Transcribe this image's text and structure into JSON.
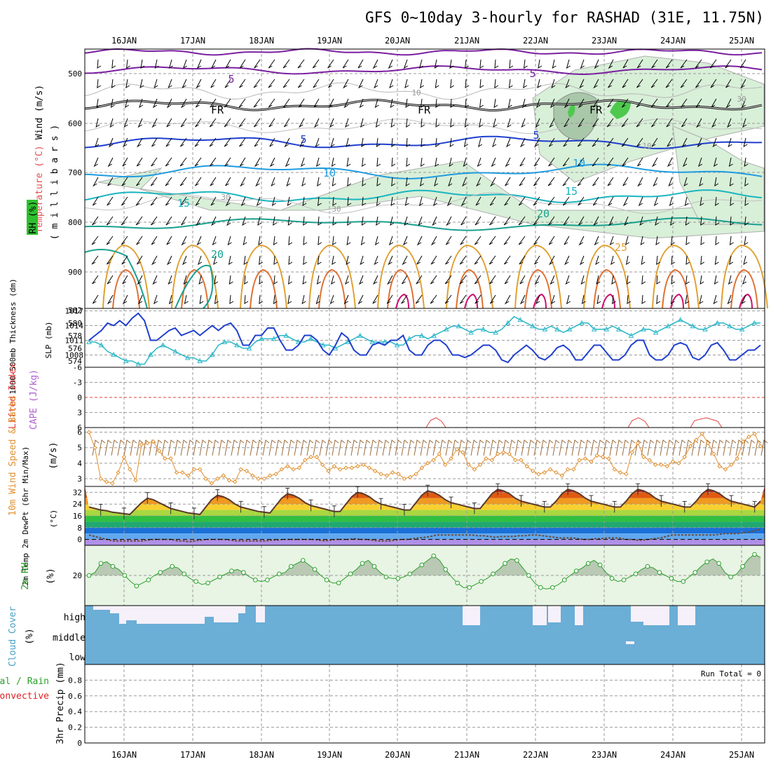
{
  "title": "GFS 0~10day 3-hourly for RASHAD (31E, 11.75N)",
  "dates": [
    "16JAN",
    "17JAN",
    "18JAN",
    "19JAN",
    "20JAN",
    "21JAN",
    "22JAN",
    "23JAN",
    "24JAN",
    "25JAN"
  ],
  "colors": {
    "temp": "#e8a030",
    "rh": "#2ca02c",
    "slp": "#1f3fcf",
    "thickness": "#2ab7c8",
    "lifted": "#e04040",
    "cape": "#b060d0",
    "wind": "#e09030",
    "cloud": "#6baed6",
    "precip_total": "#2ca02c",
    "precip_conv": "#e02020"
  },
  "upper": {
    "labels": {
      "wind": "Wind (m/s)",
      "temperature": "Temperature (°C)",
      "rh": "RH (%)",
      "units": "( m i l l i b a r s )"
    },
    "y_ticks": [
      "500",
      "600",
      "700",
      "800",
      "900"
    ],
    "contour_labels": [
      "5",
      "5",
      "FR",
      "FR",
      "FR",
      "5",
      "5",
      "10",
      "10",
      "15",
      "15",
      "20",
      "20",
      "25",
      "10",
      "10",
      "30",
      "30",
      "30"
    ]
  },
  "slp_panel": {
    "labels": {
      "thickness": "1000-500mb Thickness (dm)",
      "slp": "SLP (mb)"
    },
    "left_ticks": [
      "582",
      "580",
      "578",
      "576",
      "574"
    ],
    "right_ticks": [
      "1017",
      "1014",
      "1011",
      "1008"
    ]
  },
  "li_panel": {
    "labels": {
      "lifted": "Lifted Index",
      "cape": "CAPE (J/kg)"
    },
    "ticks": [
      "-6",
      "-3",
      "0",
      "3",
      "6"
    ]
  },
  "wind_panel": {
    "labels": {
      "title": "10m Wind Speed & Barbs",
      "units": "(m/s)"
    },
    "ticks": [
      "6",
      "5",
      "4",
      "3"
    ]
  },
  "temp_panel": {
    "labels": {
      "title": "2m Temp 2m DewPt (6hr Min/Max)",
      "units": "(°C)"
    },
    "ticks": [
      "32",
      "24",
      "16",
      "8",
      "0"
    ]
  },
  "rh_panel": {
    "labels": {
      "title": "2m RH",
      "units": "(%)"
    },
    "ticks": [
      "20"
    ]
  },
  "cloud_panel": {
    "labels": {
      "title": "Cloud Cover",
      "units": "(%)"
    },
    "levels": [
      "high",
      "middle",
      "low"
    ]
  },
  "precip_panel": {
    "labels": {
      "title": "3hr Precip (mm)",
      "total": "Total / Rain",
      "convective": "Convective"
    },
    "ticks": [
      "0.8",
      "0.6",
      "0.4",
      "0.2",
      "0"
    ],
    "run_total": "Run Total = 0"
  },
  "chart_data": [
    {
      "type": "line",
      "name": "slp",
      "xlabel": "",
      "ylabel": "SLP (mb)",
      "ylim": [
        1005,
        1017
      ],
      "x_start": "15JAN 12Z",
      "x_step_hours": 3,
      "series": [
        {
          "name": "SLP (mb)",
          "values": [
            1011,
            1012,
            1013,
            1014.5,
            1014,
            1015,
            1014,
            1015.5,
            1016.5,
            1015,
            1011,
            1011,
            1012,
            1013,
            1013.5,
            1012,
            1012.5,
            1013,
            1012,
            1013,
            1014,
            1013,
            1014,
            1014.5,
            1013,
            1010,
            1010,
            1012,
            1012,
            1013.5,
            1013.5,
            1011,
            1009,
            1009,
            1010,
            1012,
            1012,
            1011,
            1009,
            1008,
            1010,
            1012.5,
            1011.5,
            1009,
            1008,
            1008,
            1010,
            1010.5,
            1010,
            1011,
            1011,
            1012,
            1009,
            1008,
            1008,
            1010,
            1011,
            1011,
            1010,
            1008,
            1008,
            1007.5,
            1008,
            1009,
            1010,
            1010,
            1009,
            1007,
            1006.5,
            1008,
            1009,
            1010,
            1009,
            1007.5,
            1007,
            1008,
            1009.5,
            1010,
            1009,
            1007,
            1007,
            1008.5,
            1010,
            1010,
            1008.5,
            1007,
            1007,
            1008,
            1010,
            1011,
            1011,
            1008,
            1007,
            1007,
            1008,
            1010,
            1010.5,
            1010,
            1007.5,
            1007,
            1008,
            1010,
            1010.5,
            1009,
            1007,
            1007,
            1008,
            1009,
            1009,
            1010
          ]
        }
      ]
    },
    {
      "type": "line",
      "name": "thickness",
      "ylabel": "1000-500mb Thickness (dm)",
      "ylim": [
        573,
        582
      ],
      "series": [
        {
          "name": "Thickness (dm)",
          "values": [
            577,
            577,
            576.5,
            575.5,
            575,
            574.5,
            574,
            574,
            573.5,
            573.5,
            575,
            576,
            576.5,
            576,
            575.5,
            575,
            574.5,
            574.5,
            574,
            574,
            575,
            576.5,
            577,
            577,
            576.5,
            576,
            576,
            577,
            577.5,
            577.5,
            577.5,
            578,
            578,
            577.5,
            577,
            577,
            577.5,
            577,
            576.5,
            576.5,
            576,
            576.5,
            577,
            577.5,
            578,
            577.5,
            577,
            577,
            577,
            577,
            576.5,
            576.5,
            577.5,
            578,
            578,
            577.5,
            578,
            578.5,
            579,
            579.5,
            579.5,
            579,
            578.5,
            579,
            579,
            578.5,
            578.5,
            579,
            580,
            581,
            580.5,
            580,
            579.5,
            579,
            579,
            579.5,
            579,
            578.5,
            579,
            579.5,
            580,
            580,
            579,
            579,
            579,
            579.5,
            579,
            578.5,
            578,
            578.5,
            579,
            579,
            578.5,
            579,
            579.5,
            580,
            580.5,
            580,
            579.5,
            579,
            579,
            579.5,
            580,
            580,
            579.5,
            579,
            579,
            579.5,
            580,
            580
          ]
        }
      ]
    },
    {
      "type": "line",
      "name": "wind10m",
      "ylabel": "10m Wind Speed (m/s)",
      "ylim": [
        2.5,
        6.2
      ],
      "series": [
        {
          "name": "10m Wind Speed",
          "values": [
            6,
            5,
            3,
            2.8,
            2.7,
            3.4,
            4.4,
            3.6,
            2.9,
            5.2,
            5.3,
            5.4,
            4.8,
            4.3,
            4.3,
            3.4,
            3.4,
            3.2,
            3.6,
            3.6,
            3.0,
            2.7,
            3.0,
            3.2,
            2.9,
            2.8,
            3.6,
            3.5,
            3.2,
            3.0,
            3.0,
            3.2,
            3.3,
            3.6,
            3.8,
            3.6,
            3.7,
            4.2,
            4.4,
            4.4,
            3.9,
            3.5,
            3.8,
            3.6,
            3.7,
            3.7,
            3.8,
            3.9,
            3.7,
            3.5,
            3.3,
            3.2,
            3.4,
            3.3,
            3.0,
            3.1,
            3.3,
            3.7,
            4.0,
            4.2,
            4.6,
            3.9,
            4.3,
            4.9,
            4.7,
            3.9,
            3.6,
            3.9,
            4.3,
            4.2,
            4.6,
            4.7,
            4.6,
            4.2,
            4.2,
            3.8,
            3.5,
            3.3,
            3.4,
            3.6,
            3.4,
            3.2,
            3.6,
            3.6,
            4.2,
            4.3,
            4.1,
            4.5,
            4.4,
            4.3,
            3.6,
            3.4,
            3.3,
            4.7,
            5.3,
            4.4,
            4.2,
            3.9,
            3.9,
            3.8,
            4.1,
            4.0,
            4.4,
            5.1,
            5.5,
            5.9,
            5.3,
            4.6,
            3.8,
            3.6,
            3.9,
            4.3,
            5.4,
            5.7,
            5.9,
            5.1
          ]
        }
      ]
    },
    {
      "type": "area",
      "name": "temp2m",
      "ylabel": "2m Temp (°C)",
      "ylim": [
        -4,
        36
      ],
      "series": [
        {
          "name": "2m Temp",
          "values": [
            22,
            21,
            20,
            19.5,
            18.5,
            18,
            17.5,
            17,
            21,
            25,
            28,
            27,
            25,
            23,
            21,
            20,
            19,
            18,
            17.5,
            17,
            22,
            27,
            30,
            29,
            27,
            24,
            22,
            21,
            20,
            19,
            18.5,
            18,
            23,
            28,
            31,
            30,
            28,
            25,
            23,
            22,
            21,
            20,
            19,
            19,
            24,
            29,
            32,
            31,
            29,
            26,
            24,
            23,
            22,
            21,
            20,
            20,
            25,
            30,
            33,
            32,
            30,
            27,
            25,
            24,
            23,
            22,
            21,
            21,
            26,
            31,
            34,
            33,
            31,
            28,
            26,
            25,
            24,
            23,
            22,
            22,
            26,
            31,
            34,
            33,
            31,
            28,
            26,
            25,
            24,
            23,
            22,
            22,
            26,
            31,
            34,
            33,
            31,
            28,
            26,
            25,
            24,
            23,
            22,
            22,
            26,
            31,
            34,
            33,
            31,
            28,
            26,
            25,
            24,
            23,
            22,
            26
          ]
        },
        {
          "name": "2m DewPt",
          "values": [
            3,
            2,
            1,
            0,
            -1,
            -1,
            -1,
            -1,
            -1,
            -1,
            -0.5,
            0,
            0,
            0,
            0,
            -1,
            -1,
            -1.5,
            -1,
            -0.5,
            0,
            0,
            0,
            0,
            -0.5,
            -1,
            -1,
            -1,
            -1,
            -1,
            -1,
            -0.5,
            -0.5,
            0,
            0,
            0,
            0,
            0,
            0,
            -0.5,
            -1,
            -0.5,
            0,
            0,
            0,
            0.5,
            0,
            0,
            -0.5,
            -1,
            -1,
            -1,
            -0.5,
            0,
            0,
            0.5,
            1,
            1.5,
            2,
            3,
            3,
            3,
            3,
            3,
            3,
            3,
            2.5,
            2.5,
            2,
            1.5,
            2,
            2,
            2,
            2.5,
            2.5,
            3,
            3,
            2.5,
            2,
            1.5,
            1,
            1,
            1,
            0.5,
            0,
            0,
            0.5,
            0.5,
            1,
            1,
            1,
            0,
            0,
            -0.5,
            -0.5,
            0,
            0.5,
            1,
            2,
            3,
            3,
            3,
            3,
            3,
            3,
            3,
            3,
            3.5,
            4,
            4,
            4,
            4.5,
            5,
            6,
            7
          ]
        }
      ]
    },
    {
      "type": "area",
      "name": "rh2m",
      "ylabel": "2m RH (%)",
      "ylim": [
        0,
        40
      ],
      "series": [
        {
          "name": "2m RH",
          "values": [
            20,
            22,
            28,
            29,
            26,
            24,
            20,
            16,
            13,
            15,
            17,
            20,
            22,
            24,
            26,
            25,
            21,
            18,
            16,
            14,
            15,
            17,
            19,
            21,
            23,
            24,
            22,
            19,
            17,
            16,
            17,
            19,
            21,
            22,
            26,
            28,
            30,
            27,
            24,
            20,
            17,
            15,
            15,
            18,
            21,
            24,
            28,
            30,
            26,
            22,
            19,
            18,
            18,
            19,
            21,
            24,
            27,
            30,
            33,
            30,
            24,
            19,
            15,
            12,
            12,
            14,
            16,
            18,
            21,
            24,
            28,
            31,
            30,
            25,
            20,
            15,
            12,
            11,
            12,
            14,
            17,
            20,
            23,
            25,
            28,
            30,
            27,
            22,
            18,
            16,
            17,
            19,
            21,
            24,
            26,
            25,
            22,
            20,
            18,
            16,
            16,
            19,
            22,
            26,
            29,
            31,
            28,
            22,
            19,
            21,
            26,
            31,
            34,
            32
          ]
        }
      ]
    },
    {
      "type": "line",
      "name": "lifted_index",
      "ylabel": "Lifted Index",
      "ylim": [
        -6,
        6
      ],
      "series": [
        {
          "name": "Lifted Index",
          "values": []
        }
      ]
    },
    {
      "type": "bar",
      "name": "precip",
      "ylabel": "3hr Precip (mm)",
      "ylim": [
        0,
        1
      ],
      "series": [
        {
          "name": "Total / Rain",
          "values": []
        },
        {
          "name": "Convective",
          "values": []
        }
      ]
    }
  ]
}
